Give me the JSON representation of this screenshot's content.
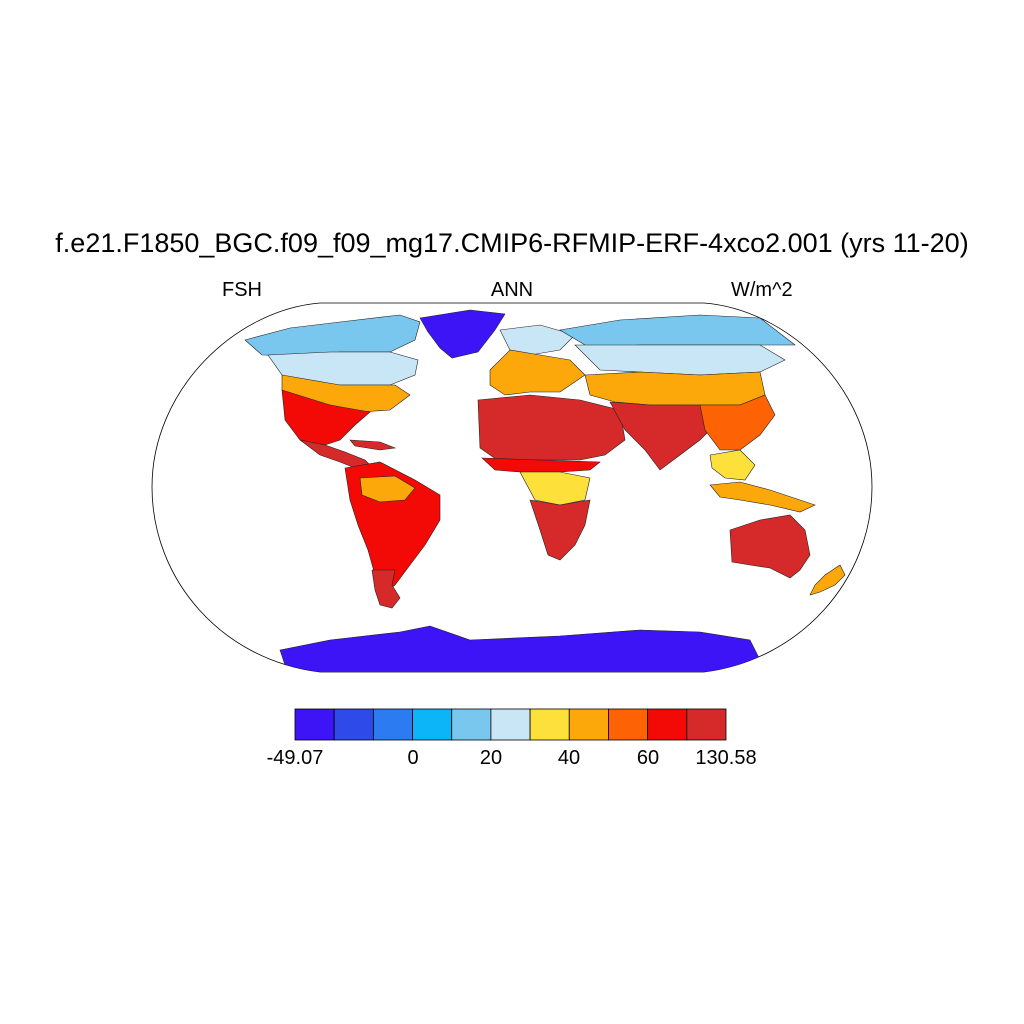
{
  "title": "f.e21.F1850_BGC.f09_f09_mg17.CMIP6-RFMIP-ERF-4xco2.001 (yrs 11-20)",
  "subtitle": {
    "left": "FSH",
    "center": "ANN",
    "right": "W/m^2"
  },
  "colorbar": {
    "colors": [
      "#3d14f5",
      "#2e4ae8",
      "#2c7bf0",
      "#0cb4f8",
      "#79c7ef",
      "#c9e6f6",
      "#fde03a",
      "#fda80a",
      "#fd6205",
      "#f30a06",
      "#d62a2a"
    ],
    "labels": [
      "-49.07",
      "0",
      "20",
      "40",
      "60",
      "130.58"
    ]
  },
  "map": {
    "projection": "robinson",
    "ocean_color": "#ffffff",
    "regions": [
      {
        "name": "greenland",
        "level": 0
      },
      {
        "name": "antarctica",
        "level": 0
      },
      {
        "name": "north-america-arctic",
        "level": 4
      },
      {
        "name": "canada-boreal",
        "level": 5
      },
      {
        "name": "north-america-mid",
        "level": 7
      },
      {
        "name": "us-south-mexico",
        "level": 9
      },
      {
        "name": "central-america-caribbean",
        "level": 10
      },
      {
        "name": "south-america",
        "level": 9
      },
      {
        "name": "amazon",
        "level": 7
      },
      {
        "name": "patagonia",
        "level": 10
      },
      {
        "name": "europe-north",
        "level": 5
      },
      {
        "name": "europe-mid",
        "level": 7
      },
      {
        "name": "sahara-arabia",
        "level": 10
      },
      {
        "name": "sahel",
        "level": 9
      },
      {
        "name": "central-africa",
        "level": 6
      },
      {
        "name": "southern-africa",
        "level": 10
      },
      {
        "name": "siberia-arctic",
        "level": 4
      },
      {
        "name": "siberia-boreal",
        "level": 5
      },
      {
        "name": "central-asia",
        "level": 7
      },
      {
        "name": "south-asia",
        "level": 10
      },
      {
        "name": "east-asia",
        "level": 8
      },
      {
        "name": "southeast-asia",
        "level": 6
      },
      {
        "name": "indonesia",
        "level": 7
      },
      {
        "name": "australia",
        "level": 10
      },
      {
        "name": "new-zealand",
        "level": 7
      }
    ]
  }
}
